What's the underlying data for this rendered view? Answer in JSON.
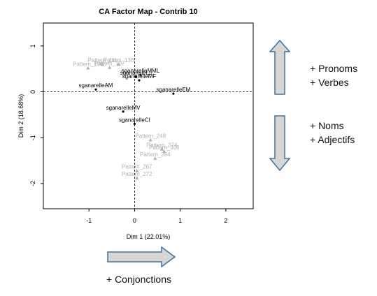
{
  "chart_data": {
    "type": "scatter",
    "title": "CA Factor Map - Contrib 10",
    "xlabel": "Dim 1 (22.01%)",
    "ylabel": "Dim 2 (18.68%)",
    "xlim": [
      -2.0,
      2.6
    ],
    "ylim": [
      -2.55,
      1.5
    ],
    "x_ticks": [
      -1,
      0,
      1,
      2
    ],
    "y_ticks": [
      -2,
      -1,
      0,
      1
    ],
    "x_tick_labels": [
      "-1",
      "0",
      "1",
      "2"
    ],
    "y_tick_labels": [
      "-2",
      "-1",
      "0",
      "1"
    ],
    "reference_lines": {
      "x": 0,
      "y": 0,
      "style": "dashed"
    },
    "series": [
      {
        "type": "row",
        "color": "#000000",
        "marker": "dot",
        "points": [
          {
            "label": "sganarelleMML",
            "x": 0.13,
            "y": 0.37
          },
          {
            "label": "sganarelleLJ",
            "x": 0.03,
            "y": 0.33
          },
          {
            "label": "sganarelleMF",
            "x": 0.1,
            "y": 0.25
          },
          {
            "label": "sganarelleAM",
            "x": -0.85,
            "y": 0.05
          },
          {
            "label": "sganarelleEM",
            "x": 0.85,
            "y": -0.04
          },
          {
            "label": "sganarelleMV",
            "x": -0.25,
            "y": -0.43
          },
          {
            "label": "sganarelleCI",
            "x": 0.0,
            "y": -0.7
          }
        ]
      },
      {
        "type": "col",
        "color": "#b0b0b0",
        "marker": "triangle",
        "points": [
          {
            "label": "Pattern_111",
            "x": -0.7,
            "y": 0.6
          },
          {
            "label": "Pattern_136",
            "x": -0.35,
            "y": 0.6
          },
          {
            "label": "Pattern_106",
            "x": -1.02,
            "y": 0.52
          },
          {
            "label": "Pattern_107",
            "x": -0.55,
            "y": 0.53
          },
          {
            "label": "Pattern_248",
            "x": 0.35,
            "y": -1.05
          },
          {
            "label": "Pattern_274",
            "x": 0.6,
            "y": -1.25
          },
          {
            "label": "Pattern_306",
            "x": 0.65,
            "y": -1.3
          },
          {
            "label": "Pattern_294",
            "x": 0.45,
            "y": -1.45
          },
          {
            "label": "Pattern_267",
            "x": 0.05,
            "y": -1.72
          },
          {
            "label": "Pattern_272",
            "x": 0.05,
            "y": -1.88
          }
        ]
      }
    ]
  },
  "annotations": {
    "up": {
      "line1": "+ Pronoms",
      "line2": "+ Verbes"
    },
    "down": {
      "line1": "+ Noms",
      "line2": "+ Adjectifs"
    },
    "right": "+ Conjonctions"
  },
  "colors": {
    "arrow_fill": "#d6d6d6",
    "arrow_stroke": "#41719c",
    "row_points": "#000000",
    "col_points": "#b0b0b0"
  }
}
